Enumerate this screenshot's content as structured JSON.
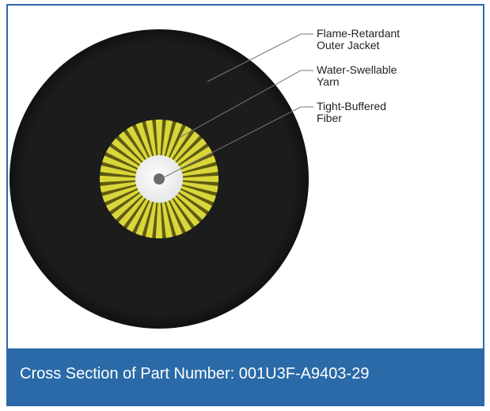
{
  "labels": [
    {
      "lines": [
        "Flame-Retardant",
        "Outer Jacket"
      ]
    },
    {
      "lines": [
        "Water-Swellable",
        "Yarn"
      ]
    },
    {
      "lines": [
        "Tight-Buffered",
        "Fiber"
      ]
    }
  ],
  "caption": "Cross Section of Part Number: 001U3F-A9403-29"
}
